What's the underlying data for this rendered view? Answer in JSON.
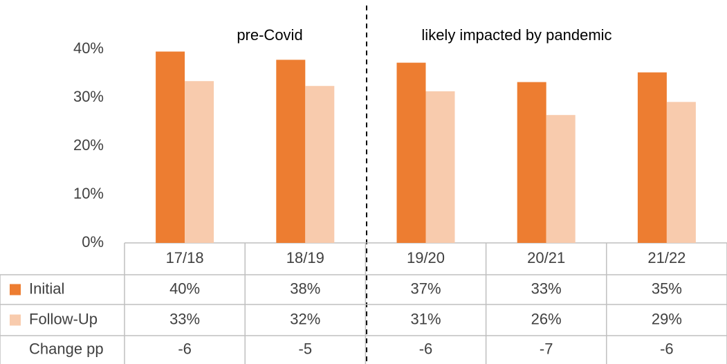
{
  "chart_data": {
    "type": "bar",
    "annotations": [
      "pre-Covid",
      "likely impacted by pandemic"
    ],
    "categories": [
      "17/18",
      "18/19",
      "19/20",
      "20/21",
      "21/22"
    ],
    "series": [
      {
        "name": "Initial",
        "color": "#ed7d31",
        "values": [
          39.5,
          37.8,
          37.2,
          33.2,
          35.2
        ],
        "value_labels": [
          "40%",
          "38%",
          "37%",
          "33%",
          "35%"
        ]
      },
      {
        "name": "Follow-Up",
        "color": "#f8cbad",
        "values": [
          33.4,
          32.4,
          31.3,
          26.4,
          29.1
        ],
        "value_labels": [
          "33%",
          "32%",
          "31%",
          "26%",
          "29%"
        ]
      }
    ],
    "change": {
      "name": "Change pp",
      "values": [
        -6,
        -5,
        -6,
        -7,
        -6
      ]
    },
    "ylim": [
      0,
      40
    ],
    "yticks": [
      {
        "value": 0,
        "label": "0%"
      },
      {
        "value": 10,
        "label": "10%"
      },
      {
        "value": 20,
        "label": "20%"
      },
      {
        "value": 30,
        "label": "30%"
      },
      {
        "value": 40,
        "label": "40%"
      }
    ],
    "grid": false
  }
}
